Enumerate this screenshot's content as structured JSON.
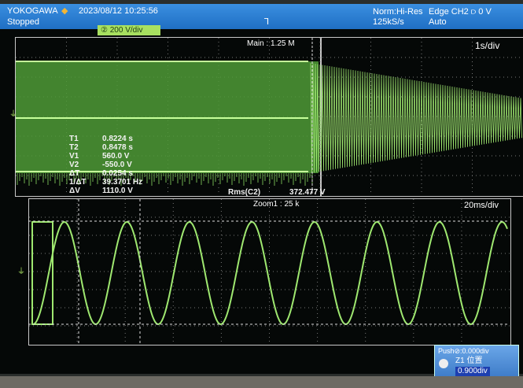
{
  "header": {
    "brand": "YOKOGAWA",
    "datetime": "2023/08/12 10:25:56",
    "status": "Stopped",
    "acq_mode": "Norm:Hi-Res",
    "sample_rate": "125kS/s",
    "trigger": "Edge CH2 ⫐ 0 V",
    "trigger_mode": "Auto"
  },
  "channel": {
    "label": "② 200 V/div",
    "color": "#a8e060"
  },
  "main": {
    "label": "Main : 1.25 M",
    "timebase": "1s/div"
  },
  "measurements": [
    {
      "name": "T1",
      "value": "0.8224 s"
    },
    {
      "name": "T2",
      "value": "0.8478 s"
    },
    {
      "name": "V1",
      "value": "560.0 V"
    },
    {
      "name": "V2",
      "value": "-550.0 V"
    },
    {
      "name": "ΔT",
      "value": "0.0254 s"
    },
    {
      "name": "1/ΔT",
      "value": "39.3701 Hz"
    },
    {
      "name": "ΔV",
      "value": "1110.0 V"
    }
  ],
  "rms": {
    "label": "Rms(C2)",
    "value": "372.477 V"
  },
  "zoom": {
    "label": "Zoom1 : 25 k",
    "timebase": "20ms/div"
  },
  "popup": {
    "push": "Push⊘:0.000div",
    "title": "Z1 位置",
    "value": "0.900div"
  },
  "trace_color": "#9fe870"
}
